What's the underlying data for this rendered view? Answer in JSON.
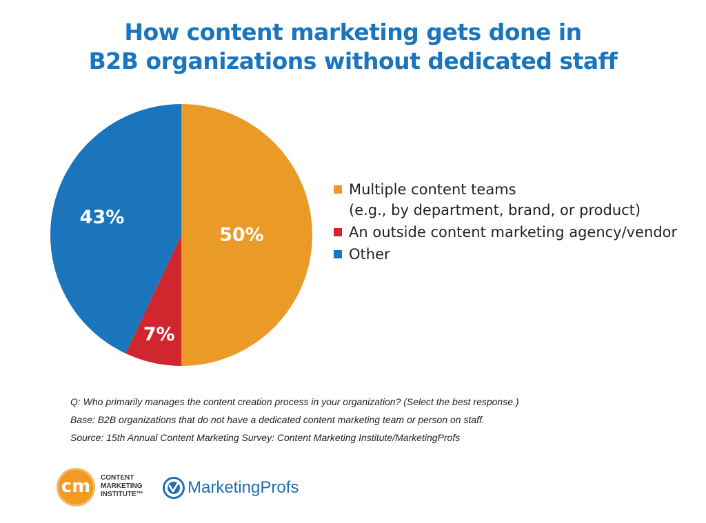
{
  "title": {
    "line1": "How content marketing gets done in",
    "line2": "B2B organizations without dedicated staff"
  },
  "chart_data": {
    "type": "pie",
    "slices": [
      {
        "label": "Multiple content teams",
        "sublabel": "(e.g., by department, brand, or product)",
        "value": 50,
        "display": "50%",
        "color": "#ea9a26"
      },
      {
        "label": "An outside content marketing agency/vendor",
        "value": 7,
        "display": "7%",
        "color": "#d0262e"
      },
      {
        "label": "Other",
        "value": 43,
        "display": "43%",
        "color": "#1a75bc"
      }
    ],
    "start_angle": "12 o'clock",
    "direction": "clockwise",
    "legend_position": "right"
  },
  "notes": {
    "question": "Q: Who primarily manages the content creation process in your organization? (Select the best response.)",
    "base": "Base: B2B organizations that do not have a dedicated content marketing team or person on staff.",
    "source": "Source: 15th Annual Content Marketing Survey: Content Marketing Institute/MarketingProfs"
  },
  "logos": {
    "cmi": {
      "mark": "cm",
      "line1": "CONTENT",
      "line2": "MARKETING",
      "line3": "INSTITUTE™",
      "color": "#f39a23"
    },
    "marketingprofs": {
      "text": "MarketingProfs",
      "color": "#1f6fb2"
    }
  }
}
